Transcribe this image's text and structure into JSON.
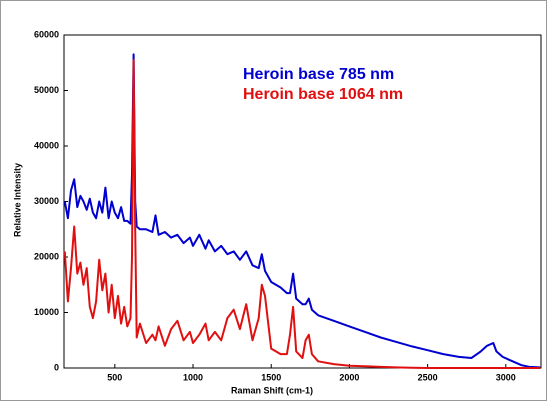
{
  "chart_data": {
    "type": "line",
    "xlabel": "Raman Shift (cm-1)",
    "ylabel": "Relative Intensity",
    "x": [
      180,
      200,
      220,
      240,
      260,
      280,
      300,
      320,
      340,
      360,
      380,
      400,
      420,
      440,
      460,
      480,
      500,
      520,
      540,
      560,
      580,
      600,
      610,
      620,
      630,
      640,
      660,
      700,
      740,
      760,
      780,
      820,
      860,
      900,
      940,
      980,
      1000,
      1040,
      1080,
      1100,
      1140,
      1180,
      1220,
      1260,
      1300,
      1340,
      1380,
      1420,
      1440,
      1460,
      1500,
      1560,
      1600,
      1620,
      1640,
      1660,
      1700,
      1720,
      1740,
      1760,
      1800,
      1900,
      2000,
      2100,
      2200,
      2300,
      2400,
      2500,
      2600,
      2700,
      2780,
      2840,
      2880,
      2920,
      2940,
      2980,
      3020,
      3060,
      3100,
      3150,
      3220
    ],
    "series": [
      {
        "name": "Heroin base 785 nm",
        "color": "#0000d0",
        "values": [
          30000,
          27000,
          32000,
          34000,
          29000,
          31000,
          30000,
          28500,
          30500,
          28000,
          27000,
          30000,
          28000,
          32500,
          27000,
          30000,
          28000,
          27000,
          29000,
          26500,
          26500,
          26000,
          35000,
          56500,
          30000,
          25500,
          25000,
          25000,
          24500,
          27500,
          24000,
          24500,
          23500,
          24000,
          22500,
          23500,
          22000,
          24000,
          21500,
          23000,
          21000,
          22000,
          20500,
          21000,
          19500,
          21000,
          18500,
          18000,
          20500,
          17500,
          15500,
          14500,
          13500,
          13500,
          17000,
          12500,
          11500,
          11500,
          12500,
          10500,
          9500,
          8500,
          7500,
          6500,
          5500,
          4700,
          3900,
          3200,
          2500,
          2000,
          1800,
          3000,
          4000,
          4500,
          3000,
          2000,
          1500,
          1000,
          500,
          200,
          100
        ]
      },
      {
        "name": "Heroin base 1064 nm",
        "color": "#e01010",
        "values": [
          21000,
          12000,
          18000,
          25500,
          17000,
          19000,
          15000,
          18000,
          11000,
          9000,
          12000,
          19500,
          14000,
          17000,
          10000,
          15000,
          9000,
          13000,
          8000,
          11000,
          7500,
          9000,
          20000,
          55500,
          25000,
          5500,
          8000,
          4500,
          6000,
          5000,
          7500,
          4000,
          7000,
          8500,
          5000,
          6500,
          4500,
          6000,
          8000,
          5000,
          6500,
          5000,
          9000,
          10500,
          7000,
          11500,
          5000,
          9000,
          15000,
          13000,
          3500,
          2500,
          2500,
          6000,
          11000,
          3000,
          1800,
          5000,
          6000,
          2500,
          1200,
          700,
          400,
          300,
          200,
          100,
          50,
          0,
          0,
          0,
          0,
          0,
          0,
          0,
          0,
          0,
          0,
          0,
          0,
          0,
          0
        ]
      }
    ],
    "xlim": [
      175,
      3225
    ],
    "xticks": [
      500,
      1000,
      1500,
      2000,
      2500,
      3000
    ],
    "ylim": [
      0,
      60000
    ],
    "yticks": [
      0,
      10000,
      20000,
      30000,
      40000,
      50000,
      60000
    ],
    "grid": false
  }
}
